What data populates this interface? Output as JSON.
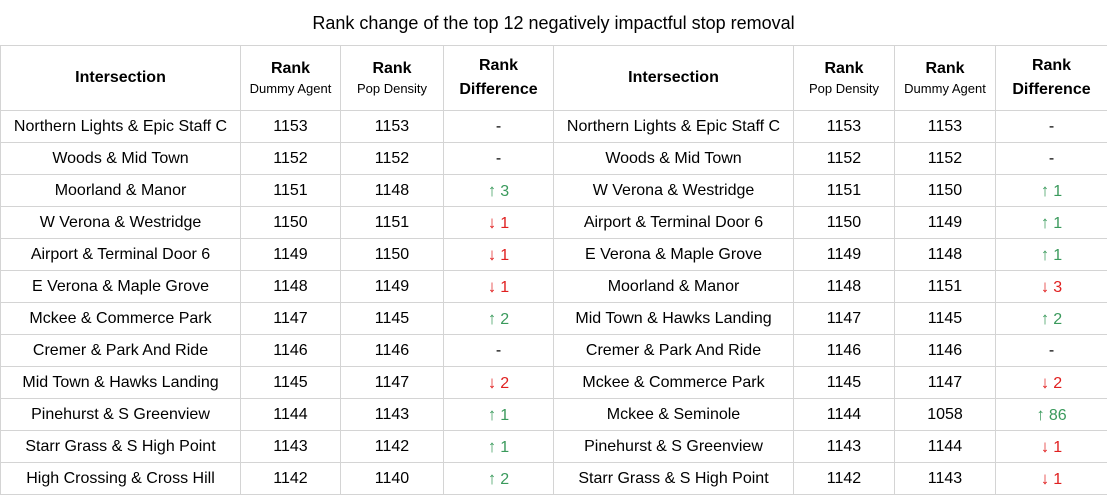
{
  "title": "Rank change of the top 12 negatively impactful stop removal",
  "left_headers": {
    "intersection": "Intersection",
    "rank_a": "Rank",
    "rank_a_sub": "Dummy Agent",
    "rank_b": "Rank",
    "rank_b_sub": "Pop Density",
    "diff_a": "Rank",
    "diff_b": "Difference"
  },
  "right_headers": {
    "intersection": "Intersection",
    "rank_a": "Rank",
    "rank_a_sub": "Pop Density",
    "rank_b": "Rank",
    "rank_b_sub": "Dummy Agent",
    "diff_a": "Rank",
    "diff_b": "Difference"
  },
  "left_rows": [
    {
      "name": "Northern Lights & Epic Staff C",
      "r1": "1153",
      "r2": "1153",
      "dir": "none",
      "diff": "-"
    },
    {
      "name": "Woods & Mid Town",
      "r1": "1152",
      "r2": "1152",
      "dir": "none",
      "diff": "-"
    },
    {
      "name": "Moorland & Manor",
      "r1": "1151",
      "r2": "1148",
      "dir": "up",
      "diff": "3"
    },
    {
      "name": "W Verona & Westridge",
      "r1": "1150",
      "r2": "1151",
      "dir": "down",
      "diff": "1"
    },
    {
      "name": "Airport & Terminal Door 6",
      "r1": "1149",
      "r2": "1150",
      "dir": "down",
      "diff": "1"
    },
    {
      "name": "E Verona & Maple Grove",
      "r1": "1148",
      "r2": "1149",
      "dir": "down",
      "diff": "1"
    },
    {
      "name": "Mckee & Commerce Park",
      "r1": "1147",
      "r2": "1145",
      "dir": "up",
      "diff": "2"
    },
    {
      "name": "Cremer & Park And Ride",
      "r1": "1146",
      "r2": "1146",
      "dir": "none",
      "diff": "-"
    },
    {
      "name": "Mid Town & Hawks Landing",
      "r1": "1145",
      "r2": "1147",
      "dir": "down",
      "diff": "2"
    },
    {
      "name": "Pinehurst & S Greenview",
      "r1": "1144",
      "r2": "1143",
      "dir": "up",
      "diff": "1"
    },
    {
      "name": "Starr Grass & S High Point",
      "r1": "1143",
      "r2": "1142",
      "dir": "up",
      "diff": "1"
    },
    {
      "name": "High Crossing & Cross Hill",
      "r1": "1142",
      "r2": "1140",
      "dir": "up",
      "diff": "2"
    }
  ],
  "right_rows": [
    {
      "name": "Northern Lights & Epic Staff C",
      "r1": "1153",
      "r2": "1153",
      "dir": "none",
      "diff": "-"
    },
    {
      "name": "Woods & Mid Town",
      "r1": "1152",
      "r2": "1152",
      "dir": "none",
      "diff": "-"
    },
    {
      "name": "W Verona & Westridge",
      "r1": "1151",
      "r2": "1150",
      "dir": "up",
      "diff": "1"
    },
    {
      "name": "Airport & Terminal Door 6",
      "r1": "1150",
      "r2": "1149",
      "dir": "up",
      "diff": "1"
    },
    {
      "name": "E Verona & Maple Grove",
      "r1": "1149",
      "r2": "1148",
      "dir": "up",
      "diff": "1"
    },
    {
      "name": "Moorland & Manor",
      "r1": "1148",
      "r2": "1151",
      "dir": "down",
      "diff": "3"
    },
    {
      "name": "Mid Town & Hawks Landing",
      "r1": "1147",
      "r2": "1145",
      "dir": "up",
      "diff": "2"
    },
    {
      "name": "Cremer & Park And Ride",
      "r1": "1146",
      "r2": "1146",
      "dir": "none",
      "diff": "-"
    },
    {
      "name": "Mckee & Commerce Park",
      "r1": "1145",
      "r2": "1147",
      "dir": "down",
      "diff": "2"
    },
    {
      "name": "Mckee & Seminole",
      "r1": "1144",
      "r2": "1058",
      "dir": "up",
      "diff": "86"
    },
    {
      "name": "Pinehurst & S Greenview",
      "r1": "1143",
      "r2": "1144",
      "dir": "down",
      "diff": "1"
    },
    {
      "name": "Starr Grass & S High Point",
      "r1": "1142",
      "r2": "1143",
      "dir": "down",
      "diff": "1"
    }
  ],
  "colors": {
    "up": "#3a9a5c",
    "down": "#e02020",
    "grid": "#d4d4d4"
  },
  "icons": {
    "up": "arrow-up-icon",
    "down": "arrow-down-icon"
  }
}
